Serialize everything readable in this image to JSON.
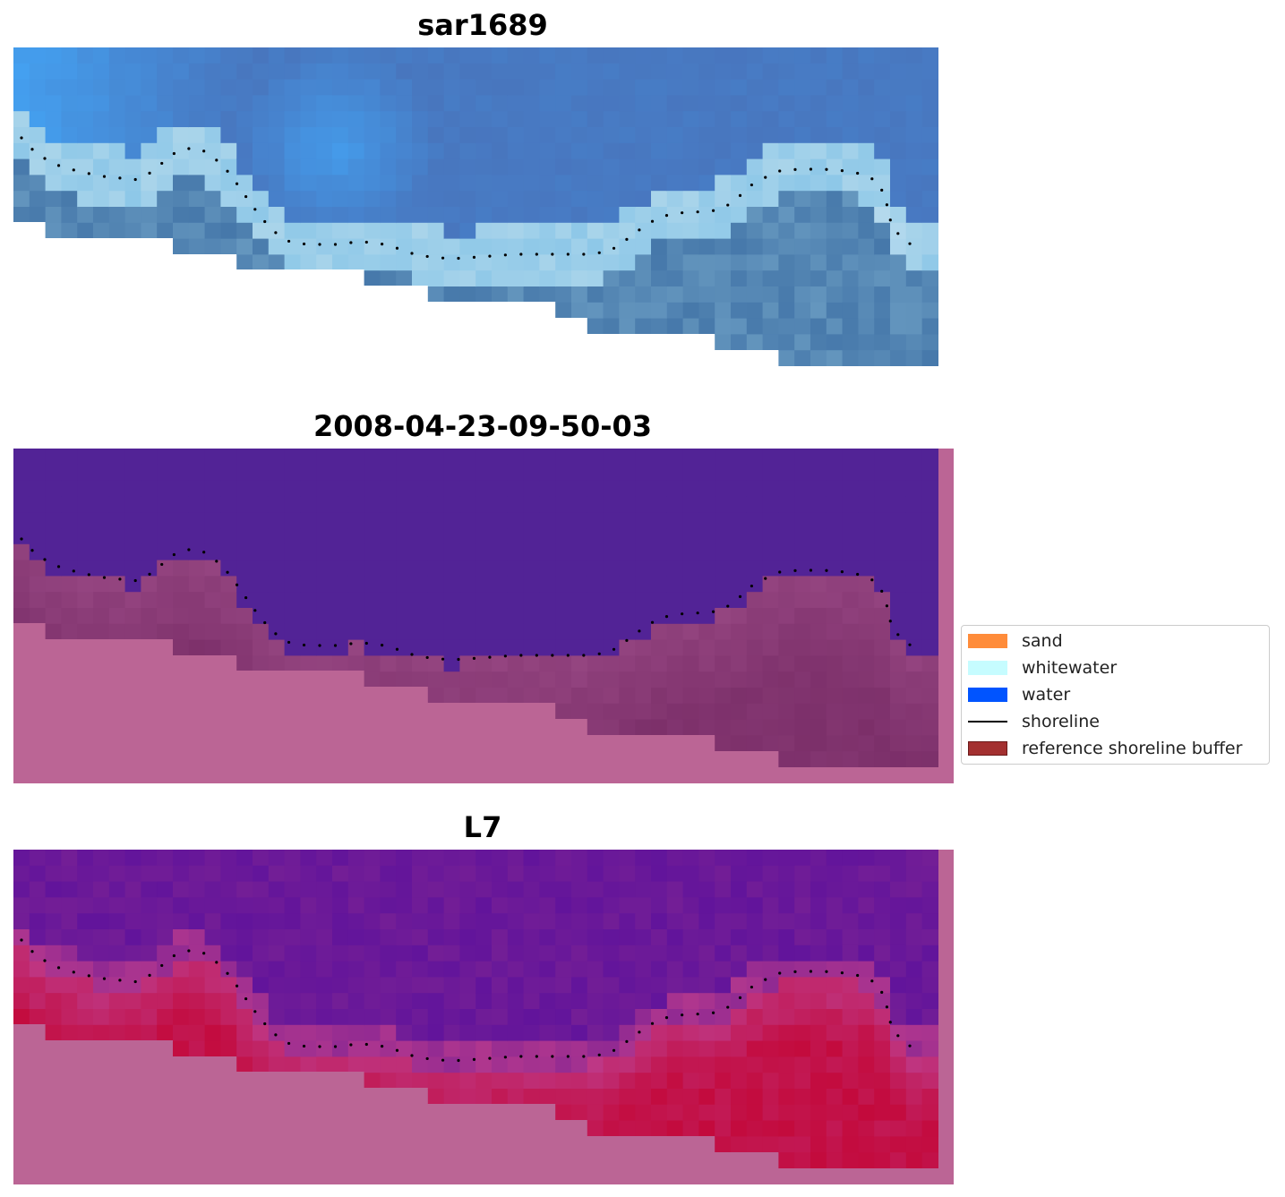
{
  "panels": [
    {
      "title": "sar1689",
      "kind": "rgb"
    },
    {
      "title": "2008-04-23-09-50-03",
      "kind": "classified"
    },
    {
      "title": "L7",
      "kind": "index"
    }
  ],
  "legend": {
    "items": [
      {
        "label": "sand",
        "color": "#ff8c3a"
      },
      {
        "label": "whitewater",
        "color": "#c6fcff"
      },
      {
        "label": "water",
        "color": "#0054ff"
      },
      {
        "label": "shoreline",
        "color": "#000000"
      },
      {
        "label": "reference shoreline buffer",
        "color": "#a33030"
      }
    ]
  },
  "colors": {
    "nodata": "#bb6595",
    "water_class": "#522396",
    "buffer_overlay": "#7a2e68"
  }
}
